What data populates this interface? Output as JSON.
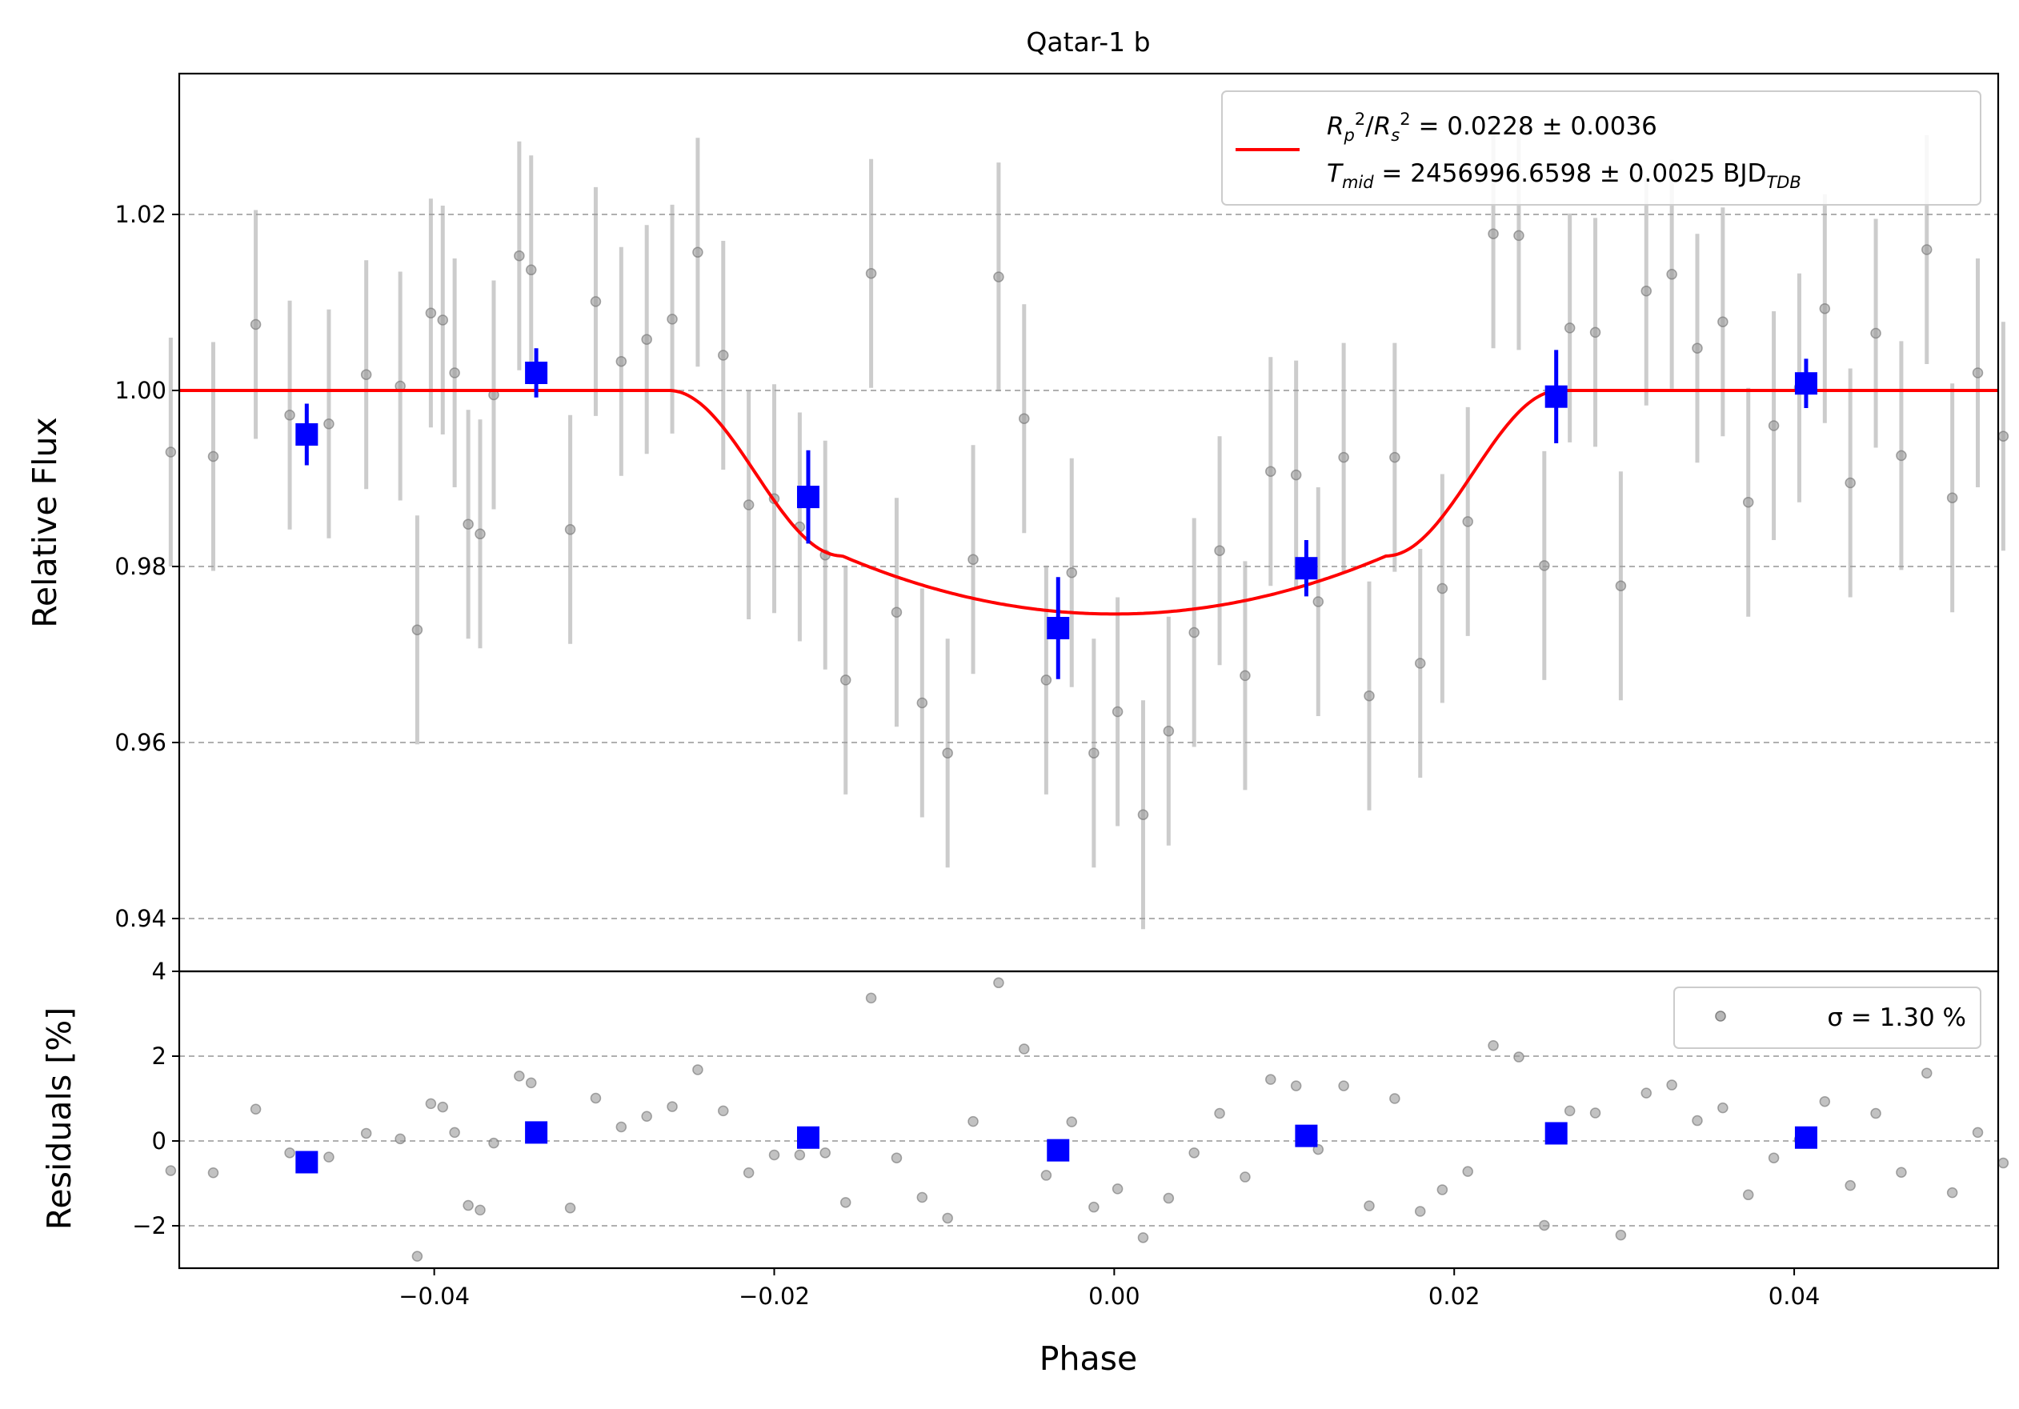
{
  "chart_data": [
    {
      "type": "scatter",
      "panel": "main",
      "title": "Qatar-1 b",
      "xlabel": "",
      "ylabel": "Relative Flux",
      "xlim": [
        -0.055,
        0.052
      ],
      "ylim": [
        0.934,
        1.036
      ],
      "yticks": [
        0.94,
        0.96,
        0.98,
        1.0,
        1.02
      ],
      "ytick_labels": [
        "0.94",
        "0.96",
        "0.98",
        "1.00",
        "1.02"
      ],
      "grid": "horizontal dashed",
      "legend": {
        "placement": "top-right",
        "line1": "R_p^2/R_s^2 = 0.0228 ± 0.0036",
        "line2": "T_mid = 2456996.6598 ± 0.0025 BJD_TDB"
      },
      "model_color": "#ff0000",
      "binned_color": "#0000ff",
      "raw_color": "#999999",
      "model_params": {
        "depth": 0.0254,
        "t1": 0.0262,
        "t2": 0.016,
        "limb_k": 0.025
      },
      "raw_points": {
        "x": [
          -0.0555,
          -0.053,
          -0.0505,
          -0.0485,
          -0.0462,
          -0.044,
          -0.042,
          -0.041,
          -0.0402,
          -0.0395,
          -0.0388,
          -0.038,
          -0.0373,
          -0.0365,
          -0.035,
          -0.0343,
          -0.032,
          -0.0305,
          -0.029,
          -0.0275,
          -0.026,
          -0.0245,
          -0.023,
          -0.0215,
          -0.02,
          -0.0185,
          -0.017,
          -0.0158,
          -0.0143,
          -0.0128,
          -0.0113,
          -0.0098,
          -0.0083,
          -0.0068,
          -0.0053,
          -0.004,
          -0.0025,
          -0.0012,
          0.0002,
          0.0017,
          0.0032,
          0.0047,
          0.0062,
          0.0077,
          0.0092,
          0.0107,
          0.012,
          0.0135,
          0.015,
          0.0165,
          0.018,
          0.0193,
          0.0208,
          0.0223,
          0.0238,
          0.0253,
          0.0268,
          0.0283,
          0.0298,
          0.0313,
          0.0328,
          0.0343,
          0.0358,
          0.0373,
          0.0388,
          0.0403,
          0.0418,
          0.0433,
          0.0448,
          0.0463,
          0.0478,
          0.0493,
          0.0508,
          0.0523
        ],
        "y": [
          0.993,
          0.9925,
          1.0075,
          0.9972,
          0.9962,
          1.0018,
          1.0005,
          0.9728,
          1.0088,
          1.008,
          1.002,
          0.9848,
          0.9837,
          0.9995,
          1.0153,
          1.0137,
          0.9842,
          1.0101,
          1.0033,
          1.0058,
          1.0081,
          1.0157,
          1.004,
          0.987,
          0.9877,
          0.9845,
          0.9813,
          0.9671,
          1.0133,
          0.9748,
          0.9645,
          0.9588,
          0.9808,
          1.0129,
          0.9968,
          0.9671,
          0.9793,
          0.9588,
          0.9635,
          0.9518,
          0.9613,
          0.9725,
          0.9818,
          0.9676,
          0.9908,
          0.9904,
          0.976,
          0.9924,
          0.9653,
          0.9924,
          0.969,
          0.9775,
          0.9851,
          1.0178,
          1.0176,
          0.9801,
          1.0071,
          1.0066,
          0.9778,
          1.0113,
          1.0132,
          1.0048,
          1.0078,
          0.9873,
          0.996,
          1.0003,
          1.0093,
          0.9895,
          1.0065,
          0.9926,
          1.016,
          0.9878,
          1.002,
          0.9948
        ],
        "err": [
          0.013,
          0.013,
          0.013,
          0.013,
          0.013,
          0.013,
          0.013,
          0.013,
          0.013,
          0.013,
          0.013,
          0.013,
          0.013,
          0.013,
          0.013,
          0.013,
          0.013,
          0.013,
          0.013,
          0.013,
          0.013,
          0.013,
          0.013,
          0.013,
          0.013,
          0.013,
          0.013,
          0.013,
          0.013,
          0.013,
          0.013,
          0.013,
          0.013,
          0.013,
          0.013,
          0.013,
          0.013,
          0.013,
          0.013,
          0.013,
          0.013,
          0.013,
          0.013,
          0.013,
          0.013,
          0.013,
          0.013,
          0.013,
          0.013,
          0.013,
          0.013,
          0.013,
          0.013,
          0.013,
          0.013,
          0.013,
          0.013,
          0.013,
          0.013,
          0.013,
          0.013,
          0.013,
          0.013,
          0.013,
          0.013,
          0.013,
          0.013,
          0.013,
          0.013,
          0.013,
          0.013,
          0.013,
          0.013,
          0.013
        ]
      },
      "binned_points": {
        "x": [
          -0.0475,
          -0.034,
          -0.018,
          -0.0033,
          0.0113,
          0.026,
          0.0407
        ],
        "y": [
          0.995,
          1.002,
          0.9879,
          0.973,
          0.9798,
          0.9993,
          1.0008
        ],
        "err": [
          0.0035,
          0.0028,
          0.0053,
          0.0058,
          0.0032,
          0.0053,
          0.0028
        ]
      }
    },
    {
      "type": "scatter",
      "panel": "residuals",
      "xlabel": "Phase",
      "ylabel": "Residuals [%]",
      "xlim": [
        -0.055,
        0.052
      ],
      "ylim": [
        -3.0,
        4.0
      ],
      "xticks": [
        -0.04,
        -0.02,
        0.0,
        0.02,
        0.04
      ],
      "xtick_labels": [
        "−0.04",
        "−0.02",
        "0.00",
        "0.02",
        "0.04"
      ],
      "yticks": [
        -2,
        0,
        2,
        4
      ],
      "ytick_labels": [
        "−2",
        "0",
        "2",
        "4"
      ],
      "grid": "horizontal dashed",
      "legend": {
        "placement": "top-right",
        "label": "σ = 1.30 %"
      },
      "raw_points": {
        "x": [
          -0.0555,
          -0.053,
          -0.0505,
          -0.0485,
          -0.0462,
          -0.044,
          -0.042,
          -0.041,
          -0.0402,
          -0.0395,
          -0.0388,
          -0.038,
          -0.0373,
          -0.0365,
          -0.035,
          -0.0343,
          -0.032,
          -0.0305,
          -0.029,
          -0.0275,
          -0.026,
          -0.0245,
          -0.023,
          -0.0215,
          -0.02,
          -0.0185,
          -0.017,
          -0.0158,
          -0.0143,
          -0.0128,
          -0.0113,
          -0.0098,
          -0.0083,
          -0.0068,
          -0.0053,
          -0.004,
          -0.0025,
          -0.0012,
          0.0002,
          0.0017,
          0.0032,
          0.0047,
          0.0062,
          0.0077,
          0.0092,
          0.0107,
          0.012,
          0.0135,
          0.015,
          0.0165,
          0.018,
          0.0193,
          0.0208,
          0.0223,
          0.0238,
          0.0253,
          0.0268,
          0.0283,
          0.0298,
          0.0313,
          0.0328,
          0.0343,
          0.0358,
          0.0373,
          0.0388,
          0.0403,
          0.0418,
          0.0433,
          0.0448,
          0.0463,
          0.0478,
          0.0493,
          0.0508,
          0.0523
        ],
        "y": [
          -0.7,
          -0.75,
          0.75,
          -0.28,
          -0.38,
          0.18,
          0.05,
          -2.72,
          0.88,
          0.8,
          0.2,
          -1.52,
          -1.63,
          -0.05,
          1.53,
          1.37,
          -1.58,
          1.01,
          0.33,
          0.58,
          0.81,
          1.68,
          0.71,
          -0.75,
          -0.33,
          -0.33,
          -0.28,
          -1.45,
          3.37,
          -0.4,
          -1.33,
          -1.82,
          0.46,
          3.73,
          2.17,
          -0.81,
          0.45,
          -1.56,
          -1.13,
          -2.28,
          -1.35,
          -0.28,
          0.65,
          -0.85,
          1.45,
          1.3,
          -0.2,
          1.3,
          -1.53,
          1.0,
          -1.66,
          -1.15,
          -0.72,
          2.25,
          1.98,
          -1.99,
          0.71,
          0.66,
          -2.22,
          1.13,
          1.32,
          0.48,
          0.78,
          -1.27,
          -0.4,
          0.03,
          0.93,
          -1.05,
          0.65,
          -0.74,
          1.6,
          -1.22,
          0.2,
          -0.52
        ]
      },
      "binned_points": {
        "x": [
          -0.0475,
          -0.034,
          -0.018,
          -0.0033,
          0.0113,
          0.026,
          0.0407
        ],
        "y": [
          -0.5,
          0.2,
          0.08,
          -0.22,
          0.12,
          0.18,
          0.08
        ]
      }
    }
  ]
}
